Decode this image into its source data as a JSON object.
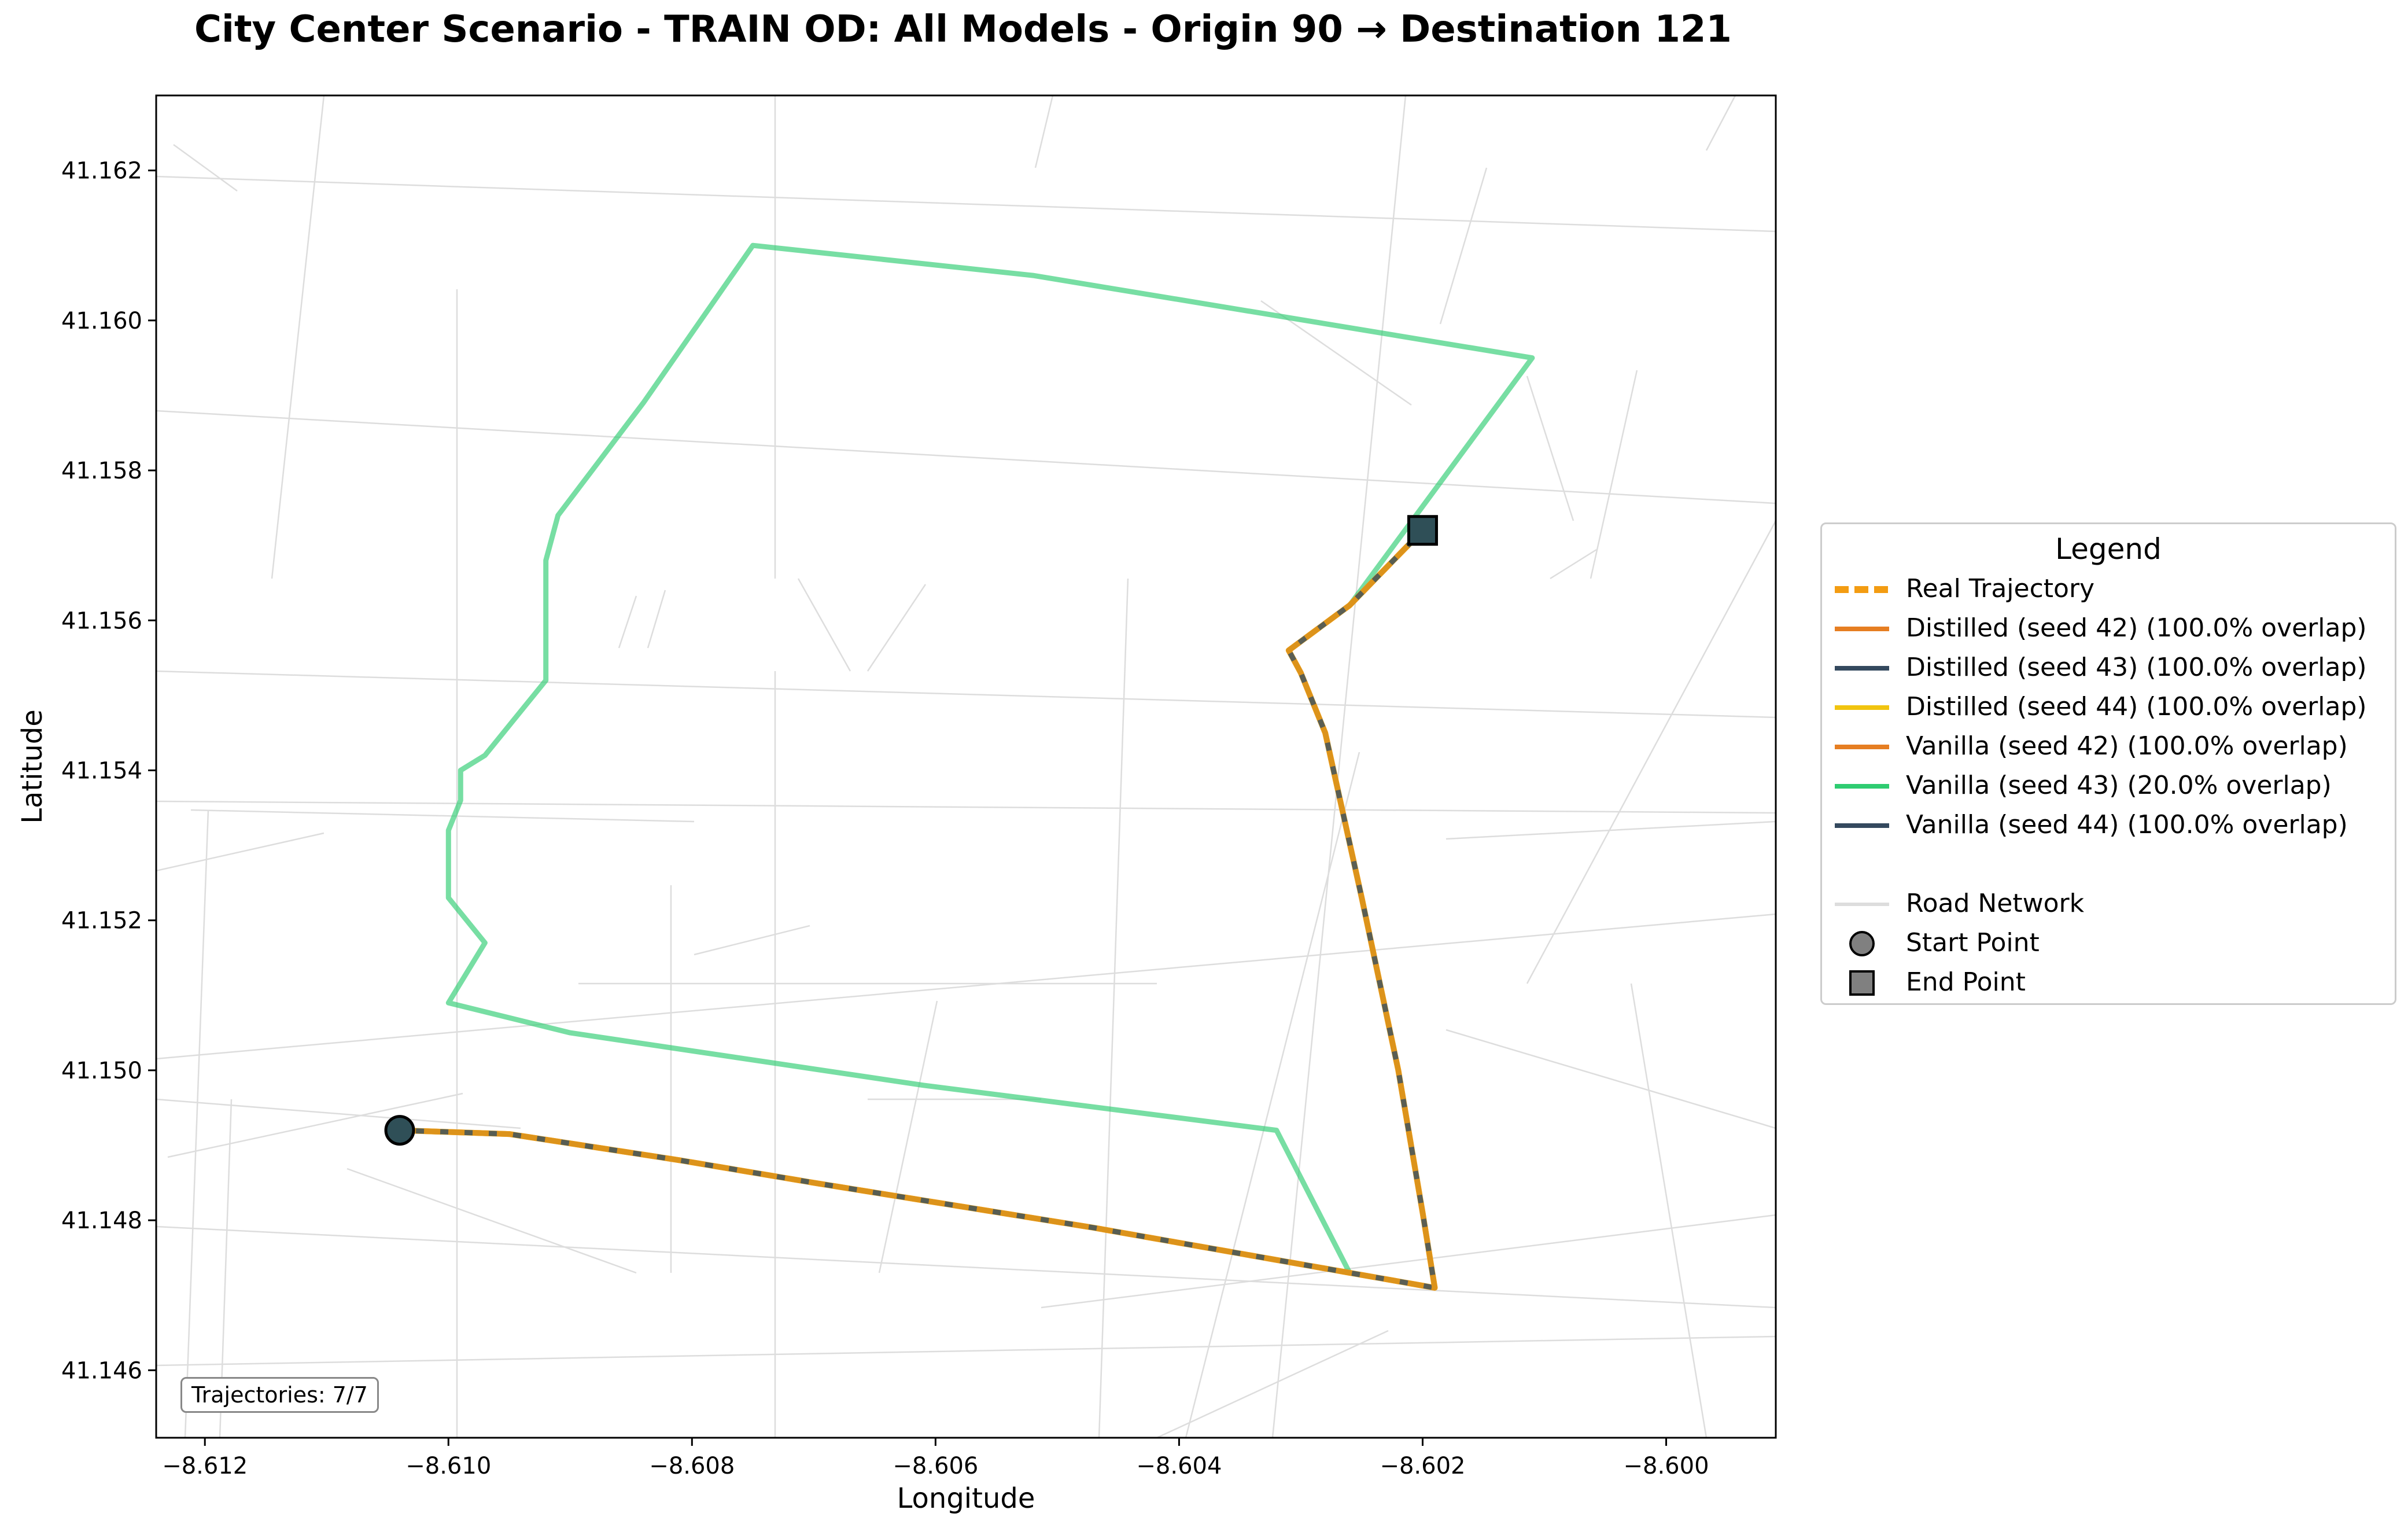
{
  "title": "City Center Scenario - TRAIN OD: All Models - Origin 90 → Destination 121",
  "chart_data": {
    "type": "map",
    "xlabel": "Longitude",
    "ylabel": "Latitude",
    "xlim": [
      -8.6124,
      -8.5991
    ],
    "ylim": [
      41.1451,
      41.163
    ],
    "x_ticks": [
      -8.612,
      -8.61,
      -8.608,
      -8.606,
      -8.604,
      -8.602,
      -8.6
    ],
    "x_tick_labels": [
      "−8.612",
      "−8.610",
      "−8.608",
      "−8.606",
      "−8.604",
      "−8.602",
      "−8.600"
    ],
    "y_ticks": [
      41.146,
      41.148,
      41.15,
      41.152,
      41.154,
      41.156,
      41.158,
      41.16,
      41.162
    ],
    "y_tick_labels": [
      "41.146",
      "41.148",
      "41.150",
      "41.152",
      "41.154",
      "41.156",
      "41.158",
      "41.160",
      "41.162"
    ],
    "grid": false,
    "legend_position": "outside-right",
    "start_point": {
      "lon": -8.6104,
      "lat": 41.1492
    },
    "end_point": {
      "lon": -8.602,
      "lat": 41.1572
    },
    "trajectories": [
      {
        "name": "Real Trajectory",
        "color": "#f39c12",
        "style": "dashed",
        "path": [
          [
            -8.6104,
            41.1492
          ],
          [
            -8.6095,
            41.14915
          ],
          [
            -8.6081,
            41.1488
          ],
          [
            -8.607,
            41.1485
          ],
          [
            -8.6047,
            41.1479
          ],
          [
            -8.6026,
            41.1473
          ],
          [
            -8.6019,
            41.1471
          ],
          [
            -8.602,
            41.1481
          ],
          [
            -8.6022,
            41.15
          ],
          [
            -8.6025,
            41.1523
          ],
          [
            -8.6028,
            41.1545
          ],
          [
            -8.603,
            41.1553
          ],
          [
            -8.6031,
            41.1556
          ],
          [
            -8.6026,
            41.1562
          ],
          [
            -8.602,
            41.1572
          ]
        ]
      },
      {
        "name": "Distilled (seed 42) (100.0% overlap)",
        "color": "#e67e22",
        "style": "solid"
      },
      {
        "name": "Distilled (seed 43) (100.0% overlap)",
        "color": "#34495e",
        "style": "solid"
      },
      {
        "name": "Distilled (seed 44) (100.0% overlap)",
        "color": "#f1c40f",
        "style": "solid"
      },
      {
        "name": "Vanilla (seed 42) (100.0% overlap)",
        "color": "#e67e22",
        "style": "solid"
      },
      {
        "name": "Vanilla (seed 43) (20.0% overlap)",
        "color": "#2ecc71",
        "style": "solid",
        "path": [
          [
            -8.6104,
            41.1492
          ],
          [
            -8.6095,
            41.14915
          ],
          [
            -8.6081,
            41.1488
          ],
          [
            -8.607,
            41.1485
          ],
          [
            -8.6047,
            41.1479
          ],
          [
            -8.6026,
            41.1473
          ],
          [
            -8.6032,
            41.1492
          ],
          [
            -8.6061,
            41.1498
          ],
          [
            -8.609,
            41.1505
          ],
          [
            -8.61,
            41.1509
          ],
          [
            -8.6097,
            41.1517
          ],
          [
            -8.61,
            41.1523
          ],
          [
            -8.61,
            41.1532
          ],
          [
            -8.6099,
            41.1536
          ],
          [
            -8.6099,
            41.154
          ],
          [
            -8.6097,
            41.1542
          ],
          [
            -8.6092,
            41.1552
          ],
          [
            -8.6092,
            41.1568
          ],
          [
            -8.6091,
            41.1574
          ],
          [
            -8.6084,
            41.1589
          ],
          [
            -8.6075,
            41.161
          ],
          [
            -8.6052,
            41.1606
          ],
          [
            -8.6011,
            41.1595
          ],
          [
            -8.6026,
            41.1562
          ],
          [
            -8.602,
            41.1572
          ]
        ]
      },
      {
        "name": "Vanilla (seed 44) (100.0% overlap)",
        "color": "#34495e",
        "style": "solid"
      }
    ],
    "legend_extra": [
      {
        "name": "Road Network",
        "color": "#dddddd",
        "kind": "line"
      },
      {
        "name": "Start Point",
        "color": "#808080",
        "kind": "circle"
      },
      {
        "name": "End Point",
        "color": "#808080",
        "kind": "square"
      }
    ],
    "marker_color": "#2f4f57"
  },
  "legend": {
    "title": "Legend",
    "items": [
      {
        "label": "Real Trajectory",
        "color": "#f39c12",
        "kind": "dashed"
      },
      {
        "label": "Distilled (seed 42) (100.0% overlap)",
        "color": "#e67e22",
        "kind": "line"
      },
      {
        "label": "Distilled (seed 43) (100.0% overlap)",
        "color": "#34495e",
        "kind": "line"
      },
      {
        "label": "Distilled (seed 44) (100.0% overlap)",
        "color": "#f1c40f",
        "kind": "line"
      },
      {
        "label": "Vanilla (seed 42) (100.0% overlap)",
        "color": "#e67e22",
        "kind": "line"
      },
      {
        "label": "Vanilla (seed 43) (20.0% overlap)",
        "color": "#2ecc71",
        "kind": "line"
      },
      {
        "label": "Vanilla (seed 44) (100.0% overlap)",
        "color": "#34495e",
        "kind": "line"
      },
      {
        "label": "Road Network",
        "color": "#dddddd",
        "kind": "line"
      },
      {
        "label": "Start Point",
        "color": "#808080",
        "kind": "circle"
      },
      {
        "label": "End Point",
        "color": "#808080",
        "kind": "square"
      }
    ]
  },
  "counter": "Trajectories: 7/7"
}
